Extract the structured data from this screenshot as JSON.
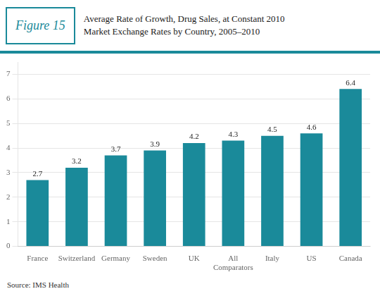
{
  "chart_data": {
    "type": "bar",
    "title": [
      "Average Rate of Growth, Drug Sales, at Constant 2010",
      "Market Exchange Rates by Country, 2005–2010"
    ],
    "annotations": [
      "Figure 15",
      "Source: IMS Health"
    ],
    "categories": [
      "France",
      "Switzerland",
      "Germany",
      "Sweden",
      "UK",
      "All\nComparators",
      "Italy",
      "US",
      "Canada"
    ],
    "values": [
      2.7,
      3.2,
      3.7,
      3.9,
      4.2,
      4.3,
      4.5,
      4.6,
      6.4
    ],
    "color": "#1a8a9a",
    "ylim": [
      0,
      7.5
    ],
    "yticks": [
      0,
      1,
      2,
      3,
      4,
      5,
      6,
      7
    ],
    "grid": true,
    "data_labels": true
  }
}
